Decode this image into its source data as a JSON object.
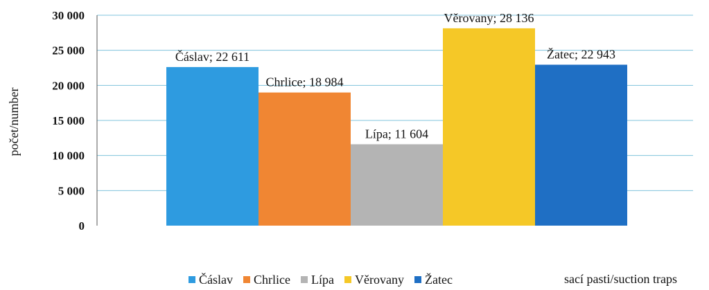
{
  "chart_data": {
    "type": "bar",
    "categories": [
      "Čáslav",
      "Chrlice",
      "Lípa",
      "Věrovany",
      "Žatec"
    ],
    "values": [
      22611,
      18984,
      11604,
      28136,
      22943
    ],
    "data_labels": [
      "Čáslav; 22 611",
      "Chrlice; 18 984",
      "Lípa; 11 604",
      "Věrovany; 28 136",
      "Žatec; 22 943"
    ],
    "colors": [
      "#2e9be0",
      "#f08633",
      "#b4b4b4",
      "#f5c827",
      "#1f6fc4"
    ],
    "ylabel": "počet/number",
    "legend_title": "sací pasti/suction traps",
    "ylim": [
      0,
      30000
    ],
    "yticks": [
      0,
      5000,
      10000,
      15000,
      20000,
      25000,
      30000
    ],
    "ytick_labels": [
      "0",
      "5 000",
      "10 000",
      "15 000",
      "20 000",
      "25 000",
      "30 000"
    ],
    "grid": true,
    "legend_position": "bottom"
  }
}
